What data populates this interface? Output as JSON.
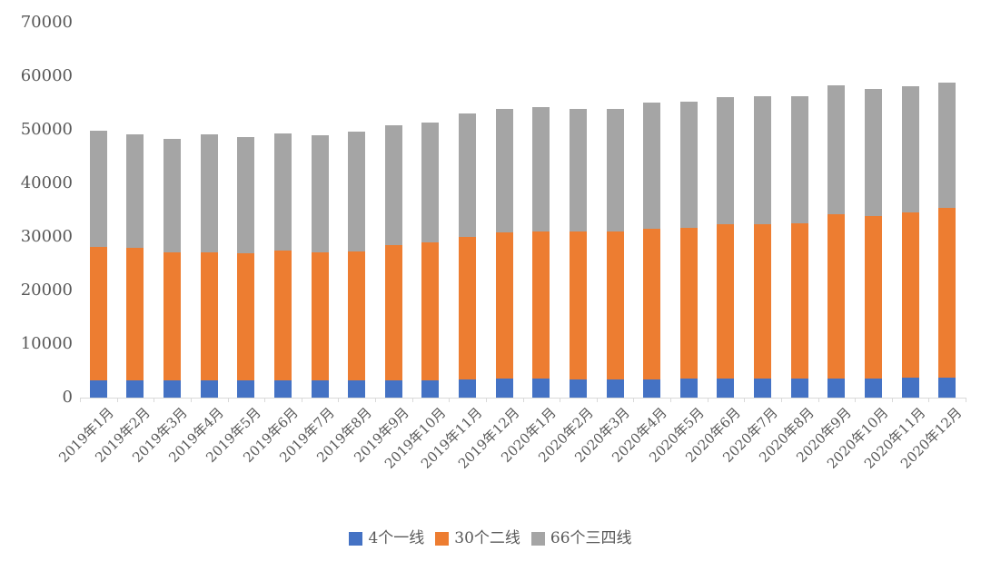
{
  "colors": {
    "first_tier": "#4472C4",
    "second_tier": "#ED7D31",
    "third_tier": "#A5A5A5",
    "axis_text": "#595959",
    "axis_line": "#D9D9D9",
    "background": "#FFFFFF"
  },
  "chart_data": {
    "type": "bar",
    "stacked": true,
    "title": "",
    "xlabel": "",
    "ylabel": "",
    "ylim": [
      0,
      70000
    ],
    "ytick_interval": 10000,
    "yticks": [
      0,
      10000,
      20000,
      30000,
      40000,
      50000,
      60000,
      70000
    ],
    "ytick_labels": [
      "0",
      "10000",
      "20000",
      "30000",
      "40000",
      "50000",
      "60000",
      "70000"
    ],
    "grid": false,
    "legend_position": "bottom",
    "categories": [
      "2019年1月",
      "2019年2月",
      "2019年3月",
      "2019年4月",
      "2019年5月",
      "2019年6月",
      "2019年7月",
      "2019年8月",
      "2019年9月",
      "2019年10月",
      "2019年11月",
      "2019年12月",
      "2020年1月",
      "2020年2月",
      "2020年3月",
      "2020年4月",
      "2020年5月",
      "2020年6月",
      "2020年7月",
      "2020年8月",
      "2020年9月",
      "2020年10月",
      "2020年11月",
      "2020年12月"
    ],
    "series": [
      {
        "name": "4个一线",
        "key": "first-tier",
        "color": "#4472C4",
        "values": [
          3300,
          3300,
          3300,
          3250,
          3250,
          3250,
          3150,
          3150,
          3200,
          3300,
          3350,
          3500,
          3500,
          3450,
          3450,
          3450,
          3500,
          3550,
          3550,
          3550,
          3600,
          3600,
          3700,
          3700
        ]
      },
      {
        "name": "30个二线",
        "key": "second-tier",
        "color": "#ED7D31",
        "values": [
          24850,
          24600,
          23900,
          23900,
          23650,
          24200,
          24050,
          24200,
          25200,
          25750,
          26650,
          27400,
          27550,
          27500,
          27500,
          28000,
          28250,
          28750,
          28750,
          29050,
          30700,
          30350,
          30900,
          31800
        ]
      },
      {
        "name": "66个三四线",
        "key": "third-tier",
        "color": "#A5A5A5",
        "values": [
          21650,
          21250,
          21150,
          22000,
          21750,
          21900,
          21800,
          22250,
          22500,
          22350,
          23000,
          23050,
          23150,
          23000,
          22950,
          23650,
          23500,
          23750,
          24050,
          23750,
          24000,
          23700,
          23600,
          23400
        ]
      }
    ],
    "totals": [
      49800,
      49150,
      48350,
      49150,
      48650,
      49350,
      49000,
      49600,
      50900,
      51400,
      53000,
      53950,
      54200,
      53950,
      53900,
      55100,
      55250,
      56050,
      56350,
      56350,
      58300,
      57650,
      58200,
      58900
    ]
  }
}
